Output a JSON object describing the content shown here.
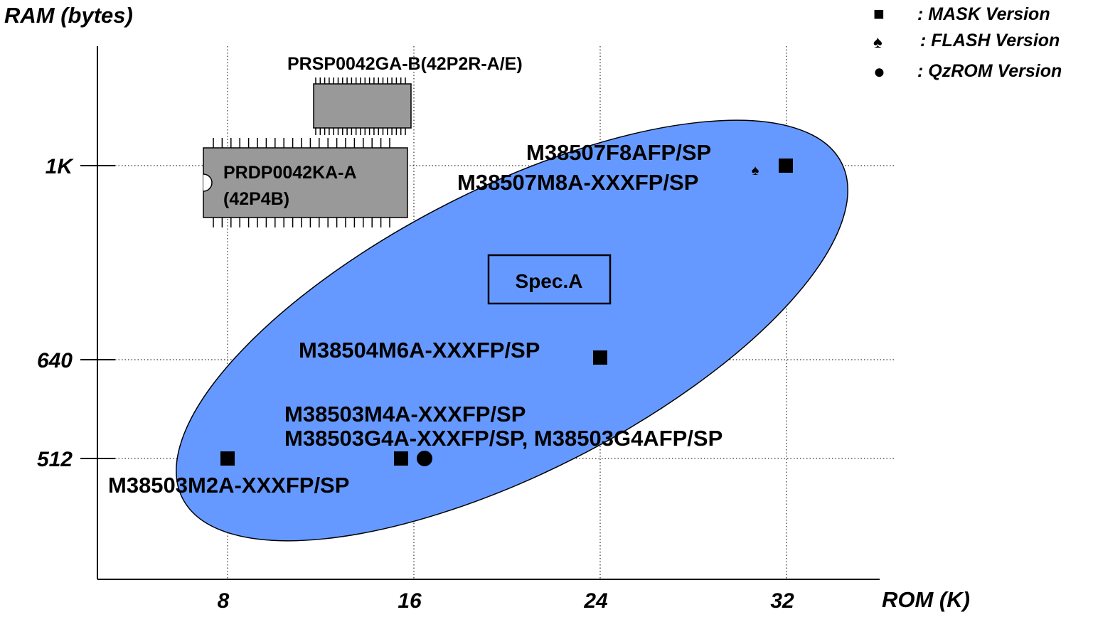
{
  "chart_data": {
    "type": "scatter",
    "ylabel": "RAM (bytes)",
    "xlabel": "ROM (K)",
    "x_ticks": [
      {
        "value": 8,
        "label": "8"
      },
      {
        "value": 16,
        "label": "16"
      },
      {
        "value": 24,
        "label": "24"
      },
      {
        "value": 32,
        "label": "32"
      }
    ],
    "y_ticks": [
      {
        "value": 512,
        "label": "512"
      },
      {
        "value": 640,
        "label": "640"
      },
      {
        "value": 1024,
        "label": "1K"
      }
    ],
    "grid": true,
    "legend_position": "top-right",
    "legend": [
      {
        "symbol": "■",
        "marker": "square",
        "label": ": MASK Version"
      },
      {
        "symbol": "♠",
        "marker": "spade",
        "label": ": FLASH Version"
      },
      {
        "symbol": "●",
        "marker": "circle",
        "label": ": QzROM Version"
      }
    ],
    "points": [
      {
        "x": 8,
        "y": 512,
        "marker": "square",
        "label": "M38503M2A-XXXFP/SP"
      },
      {
        "x": 16,
        "y": 512,
        "marker": "square",
        "label": "M38503M4A-XXXFP/SP"
      },
      {
        "x": 16,
        "y": 512,
        "marker": "circle",
        "label": "M38503G4A-XXXFP/SP, M38503G4AFP/SP"
      },
      {
        "x": 24,
        "y": 640,
        "marker": "square",
        "label": "M38504M6A-XXXFP/SP"
      },
      {
        "x": 32,
        "y": 1024,
        "marker": "square",
        "label": "M38507M8A-XXXFP/SP"
      },
      {
        "x": 32,
        "y": 1024,
        "marker": "spade",
        "label": "M38507F8AFP/SP"
      }
    ],
    "region": {
      "label": "Spec.A",
      "color": "#6699ff"
    },
    "packages": [
      {
        "label": "PRSP0042GA-B(42P2R-A/E)"
      },
      {
        "label_line1": "PRDP0042KA-A",
        "label_line2": "(42P4B)"
      }
    ]
  }
}
